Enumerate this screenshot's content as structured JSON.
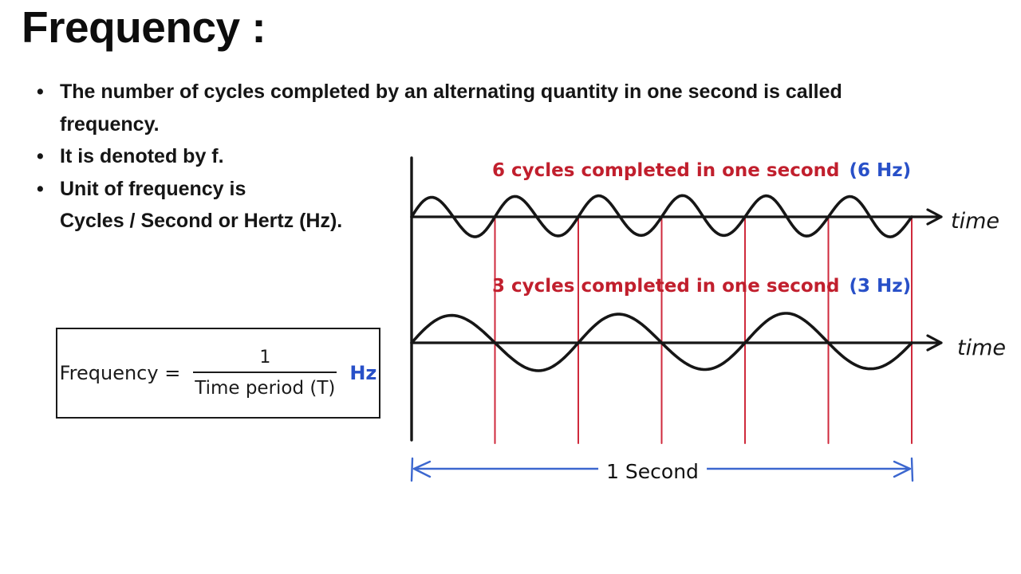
{
  "page": {
    "title": "Frequency :"
  },
  "bullets": [
    {
      "lines": [
        "The number of cycles completed by an alternating quantity in one second is called",
        "frequency."
      ]
    },
    {
      "lines": [
        "It is denoted by f."
      ]
    },
    {
      "lines": [
        "Unit of frequency is",
        "Cycles / Second or Hertz (Hz)."
      ]
    }
  ],
  "formula": {
    "label": "Frequency =",
    "numerator": "1",
    "denominator": "Time period (T)",
    "unit": "Hz"
  },
  "diagram": {
    "top_wave": {
      "annotation": "6 cycles completed in one second",
      "frequency_label": "(6 Hz)",
      "cycles": 6,
      "axis_label": "time"
    },
    "bottom_wave": {
      "annotation": "3 cycles completed in one second",
      "frequency_label": "(3 Hz)",
      "cycles": 3,
      "axis_label": "time"
    },
    "cycle_markers": 6,
    "duration_label": "1 Second"
  },
  "colors": {
    "ink": "#161616",
    "red_text": "#c11f2d",
    "red_line": "#cf2a3c",
    "blue_text": "#2850c8",
    "blue_arrow": "#3c67cf"
  }
}
